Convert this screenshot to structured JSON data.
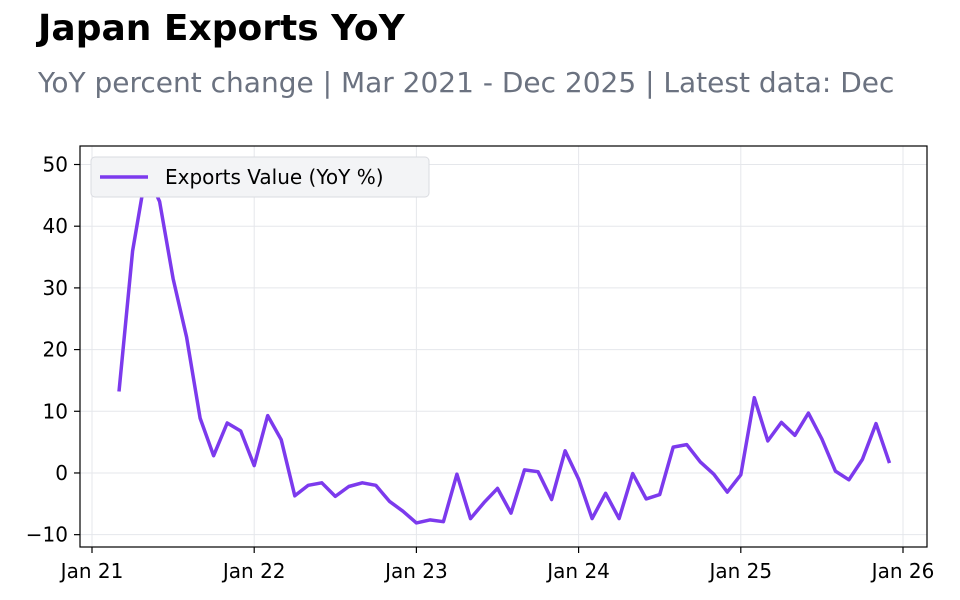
{
  "title": "Japan Exports YoY",
  "subtitle": "YoY percent change | Mar 2021 - Dec 2025 | Latest data: Dec",
  "colors": {
    "series": "#7c3aed",
    "grid": "#e5e7eb",
    "subtitle": "#6b7280",
    "legend_bg": "#f3f4f6"
  },
  "chart_data": {
    "type": "line",
    "title": "Japan Exports YoY",
    "xlabel": "",
    "ylabel": "",
    "ylim": [
      -12,
      53
    ],
    "grid": true,
    "legend_position": "top-left",
    "x_ticks": [
      "Jan 21",
      "Jan 22",
      "Jan 23",
      "Jan 24",
      "Jan 25",
      "Jan 26"
    ],
    "y_ticks": [
      -10,
      0,
      10,
      20,
      30,
      40,
      50
    ],
    "series": [
      {
        "name": "Exports Value (YoY %)",
        "x": [
          "2021-03",
          "2021-04",
          "2021-05",
          "2021-06",
          "2021-07",
          "2021-08",
          "2021-09",
          "2021-10",
          "2021-11",
          "2021-12",
          "2022-01",
          "2022-02",
          "2022-03",
          "2022-04",
          "2022-05",
          "2022-06",
          "2022-07",
          "2022-08",
          "2022-09",
          "2022-10",
          "2022-11",
          "2022-12",
          "2023-01",
          "2023-02",
          "2023-03",
          "2023-04",
          "2023-05",
          "2023-06",
          "2023-07",
          "2023-08",
          "2023-09",
          "2023-10",
          "2023-11",
          "2023-12",
          "2024-01",
          "2024-02",
          "2024-03",
          "2024-04",
          "2024-05",
          "2024-06",
          "2024-07",
          "2024-08",
          "2024-09",
          "2024-10",
          "2024-11",
          "2024-12",
          "2025-01",
          "2025-02",
          "2025-03",
          "2025-04",
          "2025-05",
          "2025-06",
          "2025-07",
          "2025-08",
          "2025-09",
          "2025-10",
          "2025-11",
          "2025-12"
        ],
        "values": [
          13.2,
          36.0,
          48.8,
          44.0,
          31.5,
          22.0,
          8.9,
          2.8,
          8.1,
          6.8,
          1.2,
          9.3,
          5.4,
          -3.7,
          -2.0,
          -1.6,
          -3.8,
          -2.2,
          -1.6,
          -2.0,
          -4.6,
          -6.2,
          -8.1,
          -7.6,
          -7.9,
          -0.2,
          -7.4,
          -4.8,
          -2.5,
          -6.5,
          0.5,
          0.2,
          -4.3,
          3.6,
          -1.0,
          -7.4,
          -3.3,
          -7.4,
          -0.1,
          -4.2,
          -3.5,
          4.2,
          4.6,
          1.8,
          -0.2,
          -3.1,
          -0.3,
          12.2,
          5.2,
          8.2,
          6.1,
          9.7,
          5.5,
          0.3,
          -1.1,
          2.2,
          8.0,
          1.6
        ]
      }
    ]
  }
}
